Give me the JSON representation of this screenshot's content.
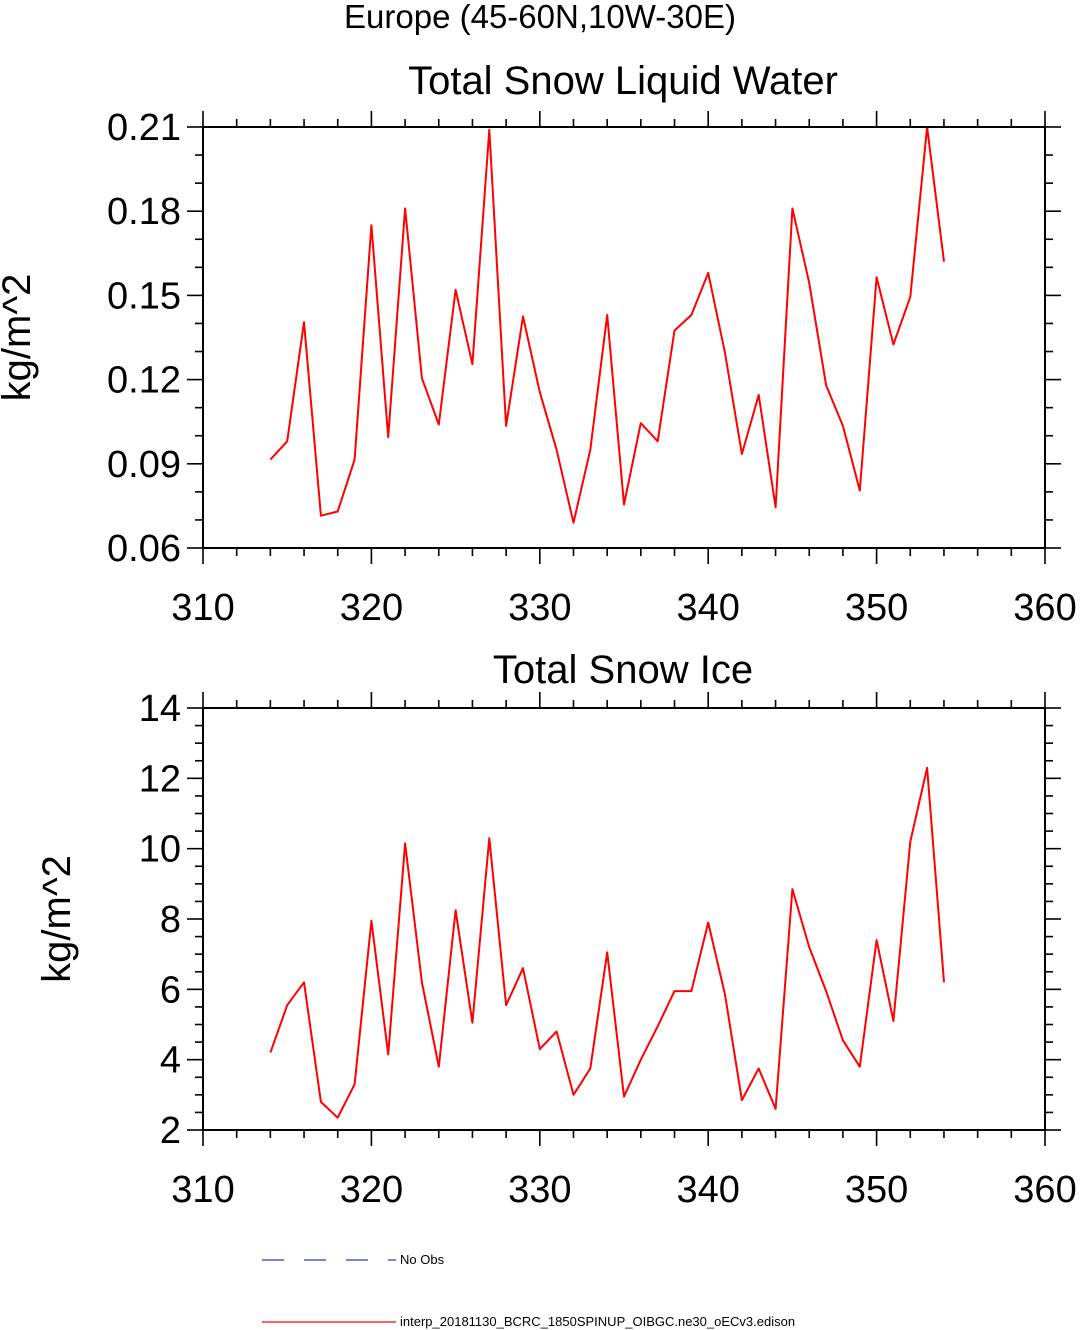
{
  "figure_title": "Europe (45-60N,10W-30E)",
  "colors": {
    "model": "#ff0000",
    "obs": "#3333cc",
    "axes": "#000000"
  },
  "legend": [
    {
      "label": "No Obs",
      "style": "dashed",
      "color": "#3333cc"
    },
    {
      "label": "interp_20181130_BCRC_1850SPINUP_OIBGC.ne30_oECv3.edison",
      "style": "solid",
      "color": "#ff0000"
    }
  ],
  "chart_data": [
    {
      "type": "line",
      "title": "Total Snow Liquid Water",
      "xlabel": "",
      "ylabel": "kg/m^2",
      "xlim": [
        310,
        360
      ],
      "ylim": [
        0.06,
        0.21
      ],
      "xticks": [
        310,
        320,
        330,
        340,
        350,
        360
      ],
      "xtick_labels": [
        "310",
        "320",
        "330",
        "340",
        "350",
        "360"
      ],
      "yticks": [
        0.06,
        0.09,
        0.12,
        0.15,
        0.18,
        0.21
      ],
      "ytick_labels": [
        "0.06",
        "0.09",
        "0.12",
        "0.15",
        "0.18",
        "0.21"
      ],
      "x_minor_step": 2,
      "y_minor_step": 0.01,
      "x": [
        314,
        315,
        316,
        317,
        318,
        319,
        320,
        321,
        322,
        323,
        324,
        325,
        326,
        327,
        328,
        329,
        330,
        331,
        332,
        333,
        334,
        335,
        336,
        337,
        338,
        339,
        340,
        341,
        342,
        343,
        344,
        345,
        346,
        347,
        348,
        349,
        350,
        351,
        352,
        353,
        354
      ],
      "series": [
        {
          "name": "interp_20181130_BCRC_1850SPINUP_OIBGC.ne30_oECv3.edison",
          "color": "#ff0000",
          "values": [
            0.0915,
            0.098,
            0.1405,
            0.0715,
            0.073,
            0.0915,
            0.175,
            0.0995,
            0.181,
            0.1205,
            0.104,
            0.152,
            0.1255,
            0.209,
            0.1035,
            0.1425,
            0.1155,
            0.095,
            0.069,
            0.095,
            0.143,
            0.0755,
            0.1045,
            0.098,
            0.1375,
            0.143,
            0.158,
            0.1295,
            0.0935,
            0.1145,
            0.0745,
            0.181,
            0.1545,
            0.118,
            0.1035,
            0.0805,
            0.1565,
            0.1325,
            0.1495,
            0.21,
            0.162
          ]
        }
      ]
    },
    {
      "type": "line",
      "title": "Total Snow Ice",
      "xlabel": "",
      "ylabel": "kg/m^2",
      "xlim": [
        310,
        360
      ],
      "ylim": [
        2,
        14
      ],
      "xticks": [
        310,
        320,
        330,
        340,
        350,
        360
      ],
      "xtick_labels": [
        "310",
        "320",
        "330",
        "340",
        "350",
        "360"
      ],
      "yticks": [
        2,
        4,
        6,
        8,
        10,
        12,
        14
      ],
      "ytick_labels": [
        "2",
        "4",
        "6",
        "8",
        "10",
        "12",
        "14"
      ],
      "x_minor_step": 2,
      "y_minor_step": 0.5,
      "x": [
        314,
        315,
        316,
        317,
        318,
        319,
        320,
        321,
        322,
        323,
        324,
        325,
        326,
        327,
        328,
        329,
        330,
        331,
        332,
        333,
        334,
        335,
        336,
        337,
        338,
        339,
        340,
        341,
        342,
        343,
        344,
        345,
        346,
        347,
        348,
        349,
        350,
        351,
        352,
        353,
        354
      ],
      "series": [
        {
          "name": "interp_20181130_BCRC_1850SPINUP_OIBGC.ne30_oECv3.edison",
          "color": "#ff0000",
          "values": [
            4.2,
            5.55,
            6.2,
            2.8,
            2.35,
            3.3,
            7.95,
            4.15,
            10.15,
            6.2,
            3.8,
            8.25,
            5.05,
            10.3,
            5.55,
            6.6,
            4.3,
            4.8,
            3.0,
            3.75,
            7.05,
            2.95,
            4.0,
            4.95,
            5.95,
            5.95,
            7.9,
            5.85,
            2.85,
            3.75,
            2.6,
            8.85,
            7.2,
            5.95,
            4.55,
            3.8,
            7.4,
            5.1,
            10.2,
            12.3,
            6.2
          ]
        }
      ]
    }
  ]
}
